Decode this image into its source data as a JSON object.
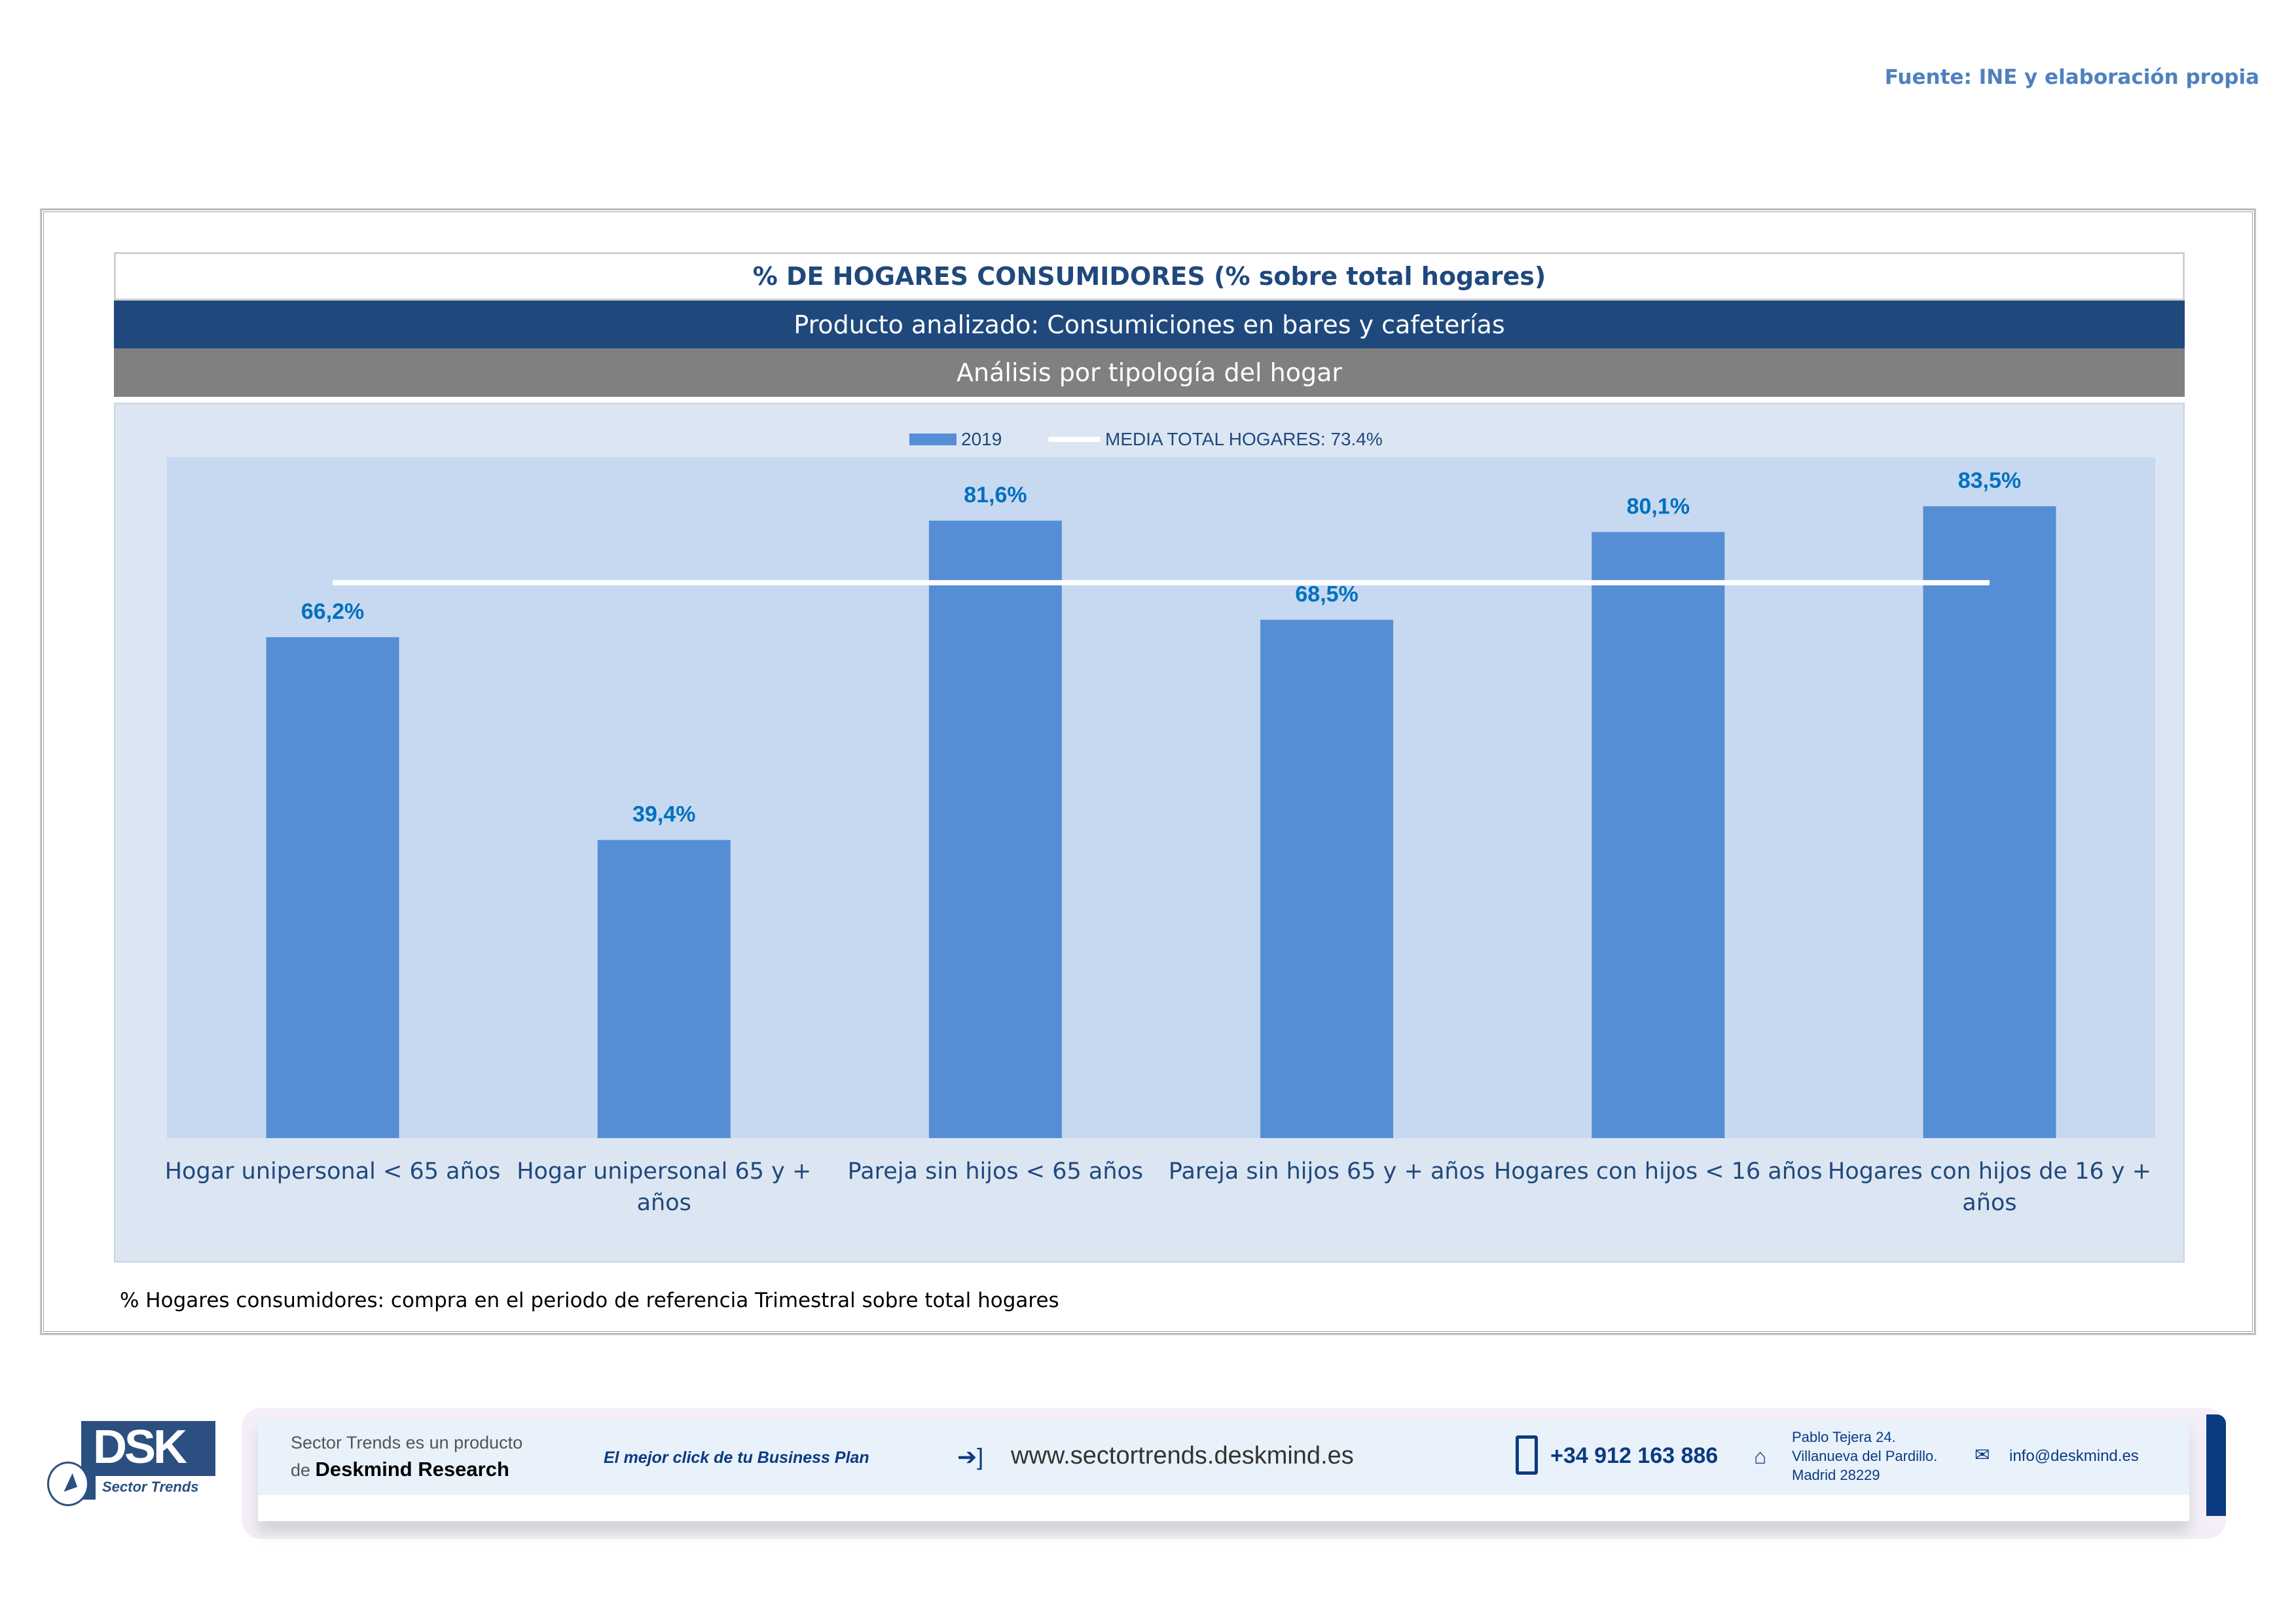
{
  "source": "Fuente: INE y elaboración propia",
  "header": {
    "title": "% DE HOGARES CONSUMIDORES (% sobre total hogares)",
    "product": "Producto analizado: Consumiciones en bares y cafeterías",
    "analysis": "Análisis por tipología del hogar"
  },
  "colors": {
    "bar": "#558ED5",
    "plot_bg": "#C6D9F0",
    "chart_bg": "#DCE6F2",
    "label": "#0070C0",
    "title": "#1F497D"
  },
  "chart_data": {
    "type": "bar",
    "categories": [
      "Hogar unipersonal < 65 años",
      "Hogar unipersonal  65 y + años",
      "Pareja sin hijos < 65 años",
      "Pareja sin hijos 65 y + años",
      "Hogares con hijos < 16 años",
      "Hogares con hijos de 16 y + años"
    ],
    "category_lines": [
      [
        "Hogar unipersonal < 65 años"
      ],
      [
        "Hogar unipersonal  65 y +",
        "años"
      ],
      [
        "Pareja sin hijos < 65 años"
      ],
      [
        "Pareja sin hijos 65 y + años"
      ],
      [
        "Hogares con hijos < 16 años"
      ],
      [
        "Hogares con hijos de 16 y +",
        "años"
      ]
    ],
    "series": [
      {
        "name": "2019",
        "values": [
          66.2,
          39.4,
          81.6,
          68.5,
          80.1,
          83.5
        ]
      }
    ],
    "data_labels": [
      "66,2%",
      "39,4%",
      "81,6%",
      "68,5%",
      "80,1%",
      "83,5%"
    ],
    "reference_line": {
      "name": "MEDIA TOTAL  HOGARES:  73.4%",
      "value": 73.4
    },
    "ylim": [
      0,
      90
    ],
    "legend_position": "top-center",
    "grid": false
  },
  "note": "% Hogares consumidores: compra en el periodo de referencia Trimestral sobre total hogares",
  "footer": {
    "logo_text": "DSK",
    "logo_sub": "Sector Trends",
    "tagline_1": "Sector Trends es un producto",
    "tagline_2a": "de ",
    "tagline_2b": "Deskmind Research",
    "slogan": "El mejor click de tu Business Plan",
    "website": "www.sectortrends.deskmind.es",
    "phone": "+34 912 163 886",
    "address_1": "Pablo Tejera 24.",
    "address_2": "Villanueva del Pardillo.",
    "address_3": "Madrid 28229",
    "email": "info@deskmind.es"
  }
}
